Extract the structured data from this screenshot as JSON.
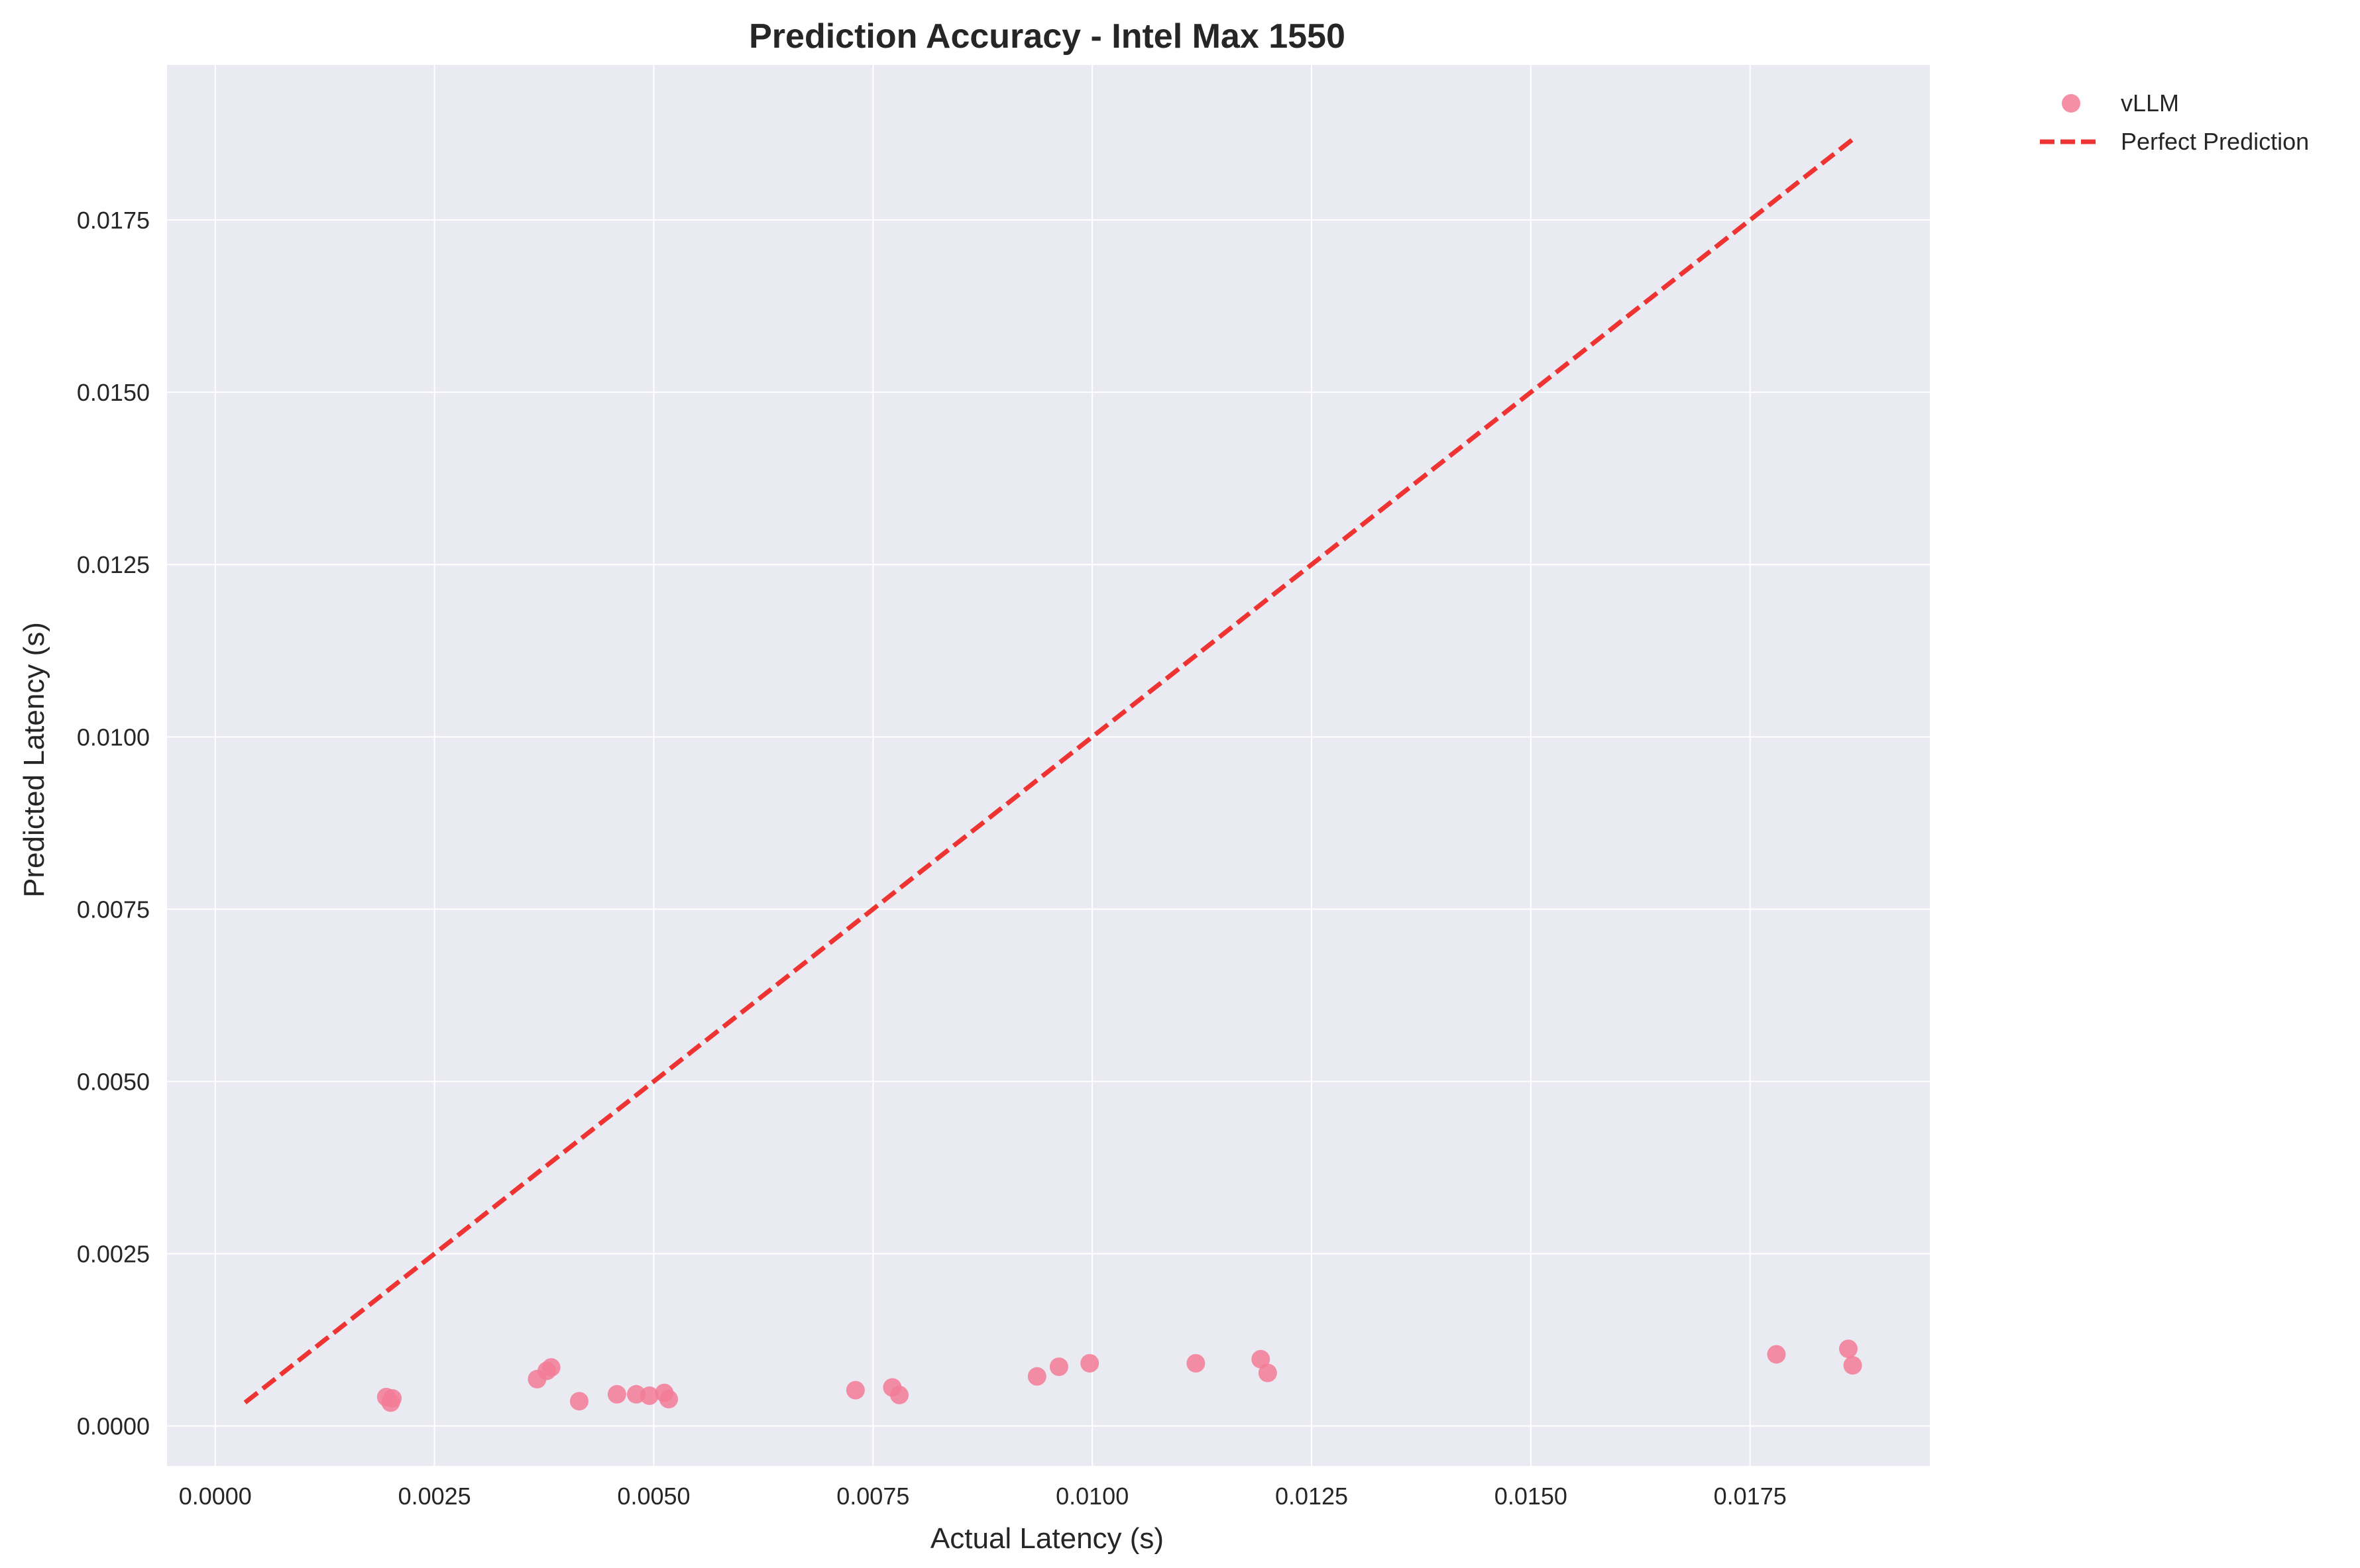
{
  "chart_data": {
    "type": "scatter",
    "title": "Prediction Accuracy - Intel Max 1550",
    "xlabel": "Actual Latency (s)",
    "ylabel": "Predicted Latency (s)",
    "xlim": [
      -0.00055,
      0.01955
    ],
    "ylim": [
      -0.00058,
      0.01975
    ],
    "xticks": [
      "0.0000",
      "0.0025",
      "0.0050",
      "0.0075",
      "0.0100",
      "0.0125",
      "0.0150",
      "0.0175"
    ],
    "yticks": [
      "0.0000",
      "0.0025",
      "0.0050",
      "0.0075",
      "0.0100",
      "0.0125",
      "0.0150",
      "0.0175"
    ],
    "grid": true,
    "legend_position": "outside-top-right",
    "colors": {
      "plot_background": "#eaeaf2",
      "grid": "#ffffff",
      "scatter": "#f37b96",
      "reference_line": "#ee3333"
    },
    "series": [
      {
        "name": "vLLM",
        "kind": "scatter",
        "points": [
          [
            0.00195,
            0.00042
          ],
          [
            0.00202,
            0.0004
          ],
          [
            0.002,
            0.00034
          ],
          [
            0.00367,
            0.00068
          ],
          [
            0.00378,
            0.0008
          ],
          [
            0.00383,
            0.00085
          ],
          [
            0.00415,
            0.00036
          ],
          [
            0.00458,
            0.00046
          ],
          [
            0.0048,
            0.00046
          ],
          [
            0.00495,
            0.00044
          ],
          [
            0.00512,
            0.00048
          ],
          [
            0.00517,
            0.00039
          ],
          [
            0.0073,
            0.00052
          ],
          [
            0.00772,
            0.00056
          ],
          [
            0.0078,
            0.00045
          ],
          [
            0.00937,
            0.00072
          ],
          [
            0.00962,
            0.00086
          ],
          [
            0.00997,
            0.00091
          ],
          [
            0.01118,
            0.00091
          ],
          [
            0.01192,
            0.00097
          ],
          [
            0.012,
            0.00077
          ],
          [
            0.0178,
            0.00104
          ],
          [
            0.01862,
            0.00112
          ],
          [
            0.01867,
            0.00088
          ]
        ]
      },
      {
        "name": "Perfect Prediction",
        "kind": "line",
        "style": "dashed",
        "points": [
          [
            0.00034,
            0.00034
          ],
          [
            0.01867,
            0.01867
          ]
        ]
      }
    ]
  }
}
